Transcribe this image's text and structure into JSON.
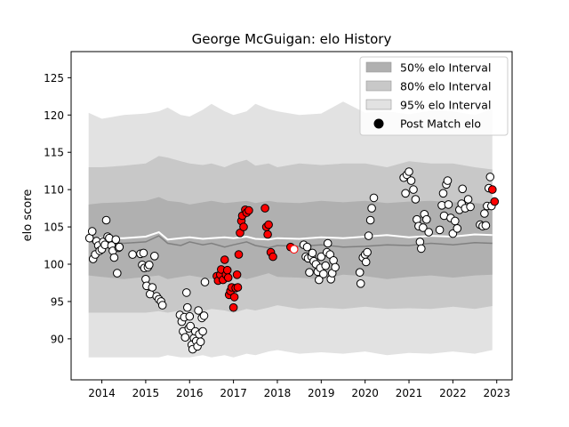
{
  "chart_data": {
    "type": "scatter",
    "title": "George McGuigan: elo History",
    "xlabel": "",
    "ylabel": "elo score",
    "xlim": [
      2013.3,
      2023.35
    ],
    "ylim": [
      84.5,
      128.5
    ],
    "x_ticks": [
      2014,
      2015,
      2016,
      2017,
      2018,
      2019,
      2020,
      2021,
      2022,
      2023
    ],
    "y_ticks": [
      90,
      95,
      100,
      105,
      110,
      115,
      120,
      125
    ],
    "grid": false,
    "legend": {
      "placement": "top-right",
      "entries": [
        {
          "label": "50% elo Interval",
          "color": "#b0b0b0"
        },
        {
          "label": "80% elo Interval",
          "color": "#c8c8c8"
        },
        {
          "label": "95% elo Interval",
          "color": "#e2e2e2"
        },
        {
          "label": "Post Match elo",
          "color": "#000000"
        }
      ]
    },
    "colors": {
      "band_50": "#b0b0b0",
      "band_80": "#c8c8c8",
      "band_95": "#e2e2e2",
      "mean_line": "#ffffff",
      "median_line": "#808080",
      "point_fill": "#ffffff",
      "point_edge": "#000000",
      "point_fill_red": "#ff0000",
      "point_edge_red": "#ff0000"
    },
    "bands": {
      "x": [
        2013.7,
        2014.0,
        2014.5,
        2015.0,
        2015.3,
        2015.5,
        2015.8,
        2016.0,
        2016.3,
        2016.5,
        2016.8,
        2017.0,
        2017.3,
        2017.5,
        2017.8,
        2018.0,
        2018.5,
        2019.0,
        2019.5,
        2020.0,
        2020.5,
        2021.0,
        2021.5,
        2022.0,
        2022.5,
        2022.9
      ],
      "band_95": {
        "lower": [
          87.5,
          87.5,
          87.5,
          87.5,
          87.5,
          87.8,
          87.5,
          87.5,
          87.8,
          87.5,
          87.8,
          87.5,
          88.0,
          87.8,
          88.3,
          88.5,
          88.0,
          88.2,
          88.0,
          88.3,
          87.8,
          88.1,
          88.0,
          88.3,
          88.0,
          88.5
        ],
        "upper": [
          120.3,
          119.5,
          120.0,
          120.2,
          120.5,
          121.0,
          120.0,
          119.8,
          120.7,
          121.5,
          120.5,
          120.0,
          120.5,
          121.5,
          120.8,
          120.5,
          120.0,
          120.2,
          121.8,
          120.3,
          120.5,
          120.1,
          120.6,
          120.5,
          120.0,
          120.8
        ]
      },
      "band_80": {
        "lower": [
          93.5,
          93.5,
          93.5,
          93.5,
          93.7,
          93.5,
          93.8,
          93.5,
          93.7,
          94.0,
          93.8,
          93.5,
          94.0,
          93.8,
          94.2,
          94.5,
          94.0,
          94.2,
          94.0,
          94.3,
          94.0,
          94.1,
          94.0,
          94.3,
          94.0,
          94.4
        ],
        "upper": [
          113.0,
          113.0,
          113.2,
          113.5,
          114.5,
          114.3,
          113.8,
          113.5,
          113.3,
          113.5,
          113.0,
          113.5,
          114.0,
          113.2,
          113.5,
          113.0,
          113.5,
          113.3,
          113.5,
          113.5,
          113.0,
          113.8,
          113.5,
          113.5,
          113.0,
          112.7
        ]
      },
      "band_50": {
        "lower": [
          98.5,
          98.3,
          98.0,
          98.3,
          98.5,
          98.0,
          98.3,
          98.5,
          98.2,
          98.0,
          98.3,
          98.5,
          98.0,
          98.3,
          98.8,
          98.3,
          98.2,
          98.0,
          98.6,
          98.4,
          98.0,
          98.3,
          98.5,
          98.2,
          98.5,
          98.6
        ],
        "upper": [
          108.0,
          108.2,
          108.3,
          108.5,
          109.0,
          108.5,
          108.3,
          108.0,
          108.3,
          108.5,
          108.2,
          108.3,
          108.5,
          108.2,
          108.5,
          108.3,
          108.2,
          108.5,
          108.3,
          108.5,
          108.2,
          108.4,
          108.5,
          108.3,
          108.2,
          108.0
        ]
      },
      "mean": [
        103.5,
        103.5,
        103.5,
        103.7,
        104.3,
        103.3,
        103.5,
        103.6,
        103.4,
        103.5,
        103.6,
        103.5,
        103.7,
        103.4,
        103.3,
        103.5,
        103.4,
        103.6,
        103.5,
        103.7,
        103.9,
        103.6,
        103.8,
        103.7,
        104.0,
        103.9
      ],
      "median": [
        103.0,
        103.0,
        102.8,
        103.0,
        103.8,
        102.8,
        102.5,
        103.0,
        102.6,
        102.8,
        102.3,
        102.6,
        103.0,
        102.5,
        102.2,
        102.5,
        102.4,
        102.6,
        102.3,
        102.4,
        102.6,
        102.5,
        102.8,
        102.6,
        102.9,
        102.8
      ]
    },
    "points": [
      {
        "x": 2013.72,
        "y": 103.5
      },
      {
        "x": 2013.78,
        "y": 104.4
      },
      {
        "x": 2013.8,
        "y": 100.7
      },
      {
        "x": 2013.85,
        "y": 101.3
      },
      {
        "x": 2013.88,
        "y": 103.1
      },
      {
        "x": 2013.92,
        "y": 102.5
      },
      {
        "x": 2013.95,
        "y": 101.8
      },
      {
        "x": 2014.0,
        "y": 102.0
      },
      {
        "x": 2014.03,
        "y": 103.0
      },
      {
        "x": 2014.07,
        "y": 102.6
      },
      {
        "x": 2014.1,
        "y": 105.9
      },
      {
        "x": 2014.13,
        "y": 103.7
      },
      {
        "x": 2014.17,
        "y": 103.5
      },
      {
        "x": 2014.22,
        "y": 102.5
      },
      {
        "x": 2014.25,
        "y": 101.8
      },
      {
        "x": 2014.28,
        "y": 100.9
      },
      {
        "x": 2014.32,
        "y": 103.3
      },
      {
        "x": 2014.35,
        "y": 98.8
      },
      {
        "x": 2014.38,
        "y": 102.2
      },
      {
        "x": 2014.4,
        "y": 102.3
      },
      {
        "x": 2014.7,
        "y": 101.3
      },
      {
        "x": 2014.88,
        "y": 101.4
      },
      {
        "x": 2014.92,
        "y": 99.9
      },
      {
        "x": 2014.95,
        "y": 101.5
      },
      {
        "x": 2014.97,
        "y": 99.5
      },
      {
        "x": 2015.0,
        "y": 98.0
      },
      {
        "x": 2015.02,
        "y": 97.1
      },
      {
        "x": 2015.05,
        "y": 99.6
      },
      {
        "x": 2015.08,
        "y": 99.9
      },
      {
        "x": 2015.1,
        "y": 96.0
      },
      {
        "x": 2015.15,
        "y": 96.9
      },
      {
        "x": 2015.2,
        "y": 101.1
      },
      {
        "x": 2015.25,
        "y": 95.7
      },
      {
        "x": 2015.3,
        "y": 95.3
      },
      {
        "x": 2015.35,
        "y": 95.0
      },
      {
        "x": 2015.38,
        "y": 94.5
      },
      {
        "x": 2015.78,
        "y": 93.2
      },
      {
        "x": 2015.82,
        "y": 92.3
      },
      {
        "x": 2015.85,
        "y": 91.0
      },
      {
        "x": 2015.88,
        "y": 92.9
      },
      {
        "x": 2015.9,
        "y": 90.2
      },
      {
        "x": 2015.93,
        "y": 96.2
      },
      {
        "x": 2015.95,
        "y": 94.2
      },
      {
        "x": 2015.98,
        "y": 91.4
      },
      {
        "x": 2016.0,
        "y": 93.0
      },
      {
        "x": 2016.02,
        "y": 91.7
      },
      {
        "x": 2016.05,
        "y": 89.2
      },
      {
        "x": 2016.07,
        "y": 88.6
      },
      {
        "x": 2016.1,
        "y": 90.1
      },
      {
        "x": 2016.13,
        "y": 91.0
      },
      {
        "x": 2016.15,
        "y": 89.7
      },
      {
        "x": 2016.18,
        "y": 89.0
      },
      {
        "x": 2016.2,
        "y": 93.8
      },
      {
        "x": 2016.22,
        "y": 90.6
      },
      {
        "x": 2016.25,
        "y": 89.6
      },
      {
        "x": 2016.28,
        "y": 92.8
      },
      {
        "x": 2016.3,
        "y": 91.0
      },
      {
        "x": 2016.33,
        "y": 93.1
      },
      {
        "x": 2016.35,
        "y": 97.6
      },
      {
        "x": 2016.62,
        "y": 98.4,
        "red": true
      },
      {
        "x": 2016.65,
        "y": 97.8,
        "red": true
      },
      {
        "x": 2016.7,
        "y": 98.6,
        "red": true
      },
      {
        "x": 2016.72,
        "y": 99.3,
        "red": true
      },
      {
        "x": 2016.76,
        "y": 97.9,
        "red": true
      },
      {
        "x": 2016.8,
        "y": 100.6,
        "red": true
      },
      {
        "x": 2016.83,
        "y": 98.6,
        "red": true
      },
      {
        "x": 2016.86,
        "y": 99.2,
        "red": true
      },
      {
        "x": 2016.88,
        "y": 98.2,
        "red": true
      },
      {
        "x": 2016.9,
        "y": 95.9,
        "red": true
      },
      {
        "x": 2016.93,
        "y": 96.4,
        "red": true
      },
      {
        "x": 2016.96,
        "y": 96.9,
        "red": true
      },
      {
        "x": 2017.0,
        "y": 94.2,
        "red": true
      },
      {
        "x": 2017.02,
        "y": 95.6,
        "red": true
      },
      {
        "x": 2017.05,
        "y": 96.8,
        "red": true
      },
      {
        "x": 2017.08,
        "y": 98.6,
        "red": true
      },
      {
        "x": 2017.1,
        "y": 96.9,
        "red": true
      },
      {
        "x": 2017.12,
        "y": 101.3,
        "red": true
      },
      {
        "x": 2017.15,
        "y": 104.2,
        "red": true
      },
      {
        "x": 2017.18,
        "y": 105.8,
        "red": true
      },
      {
        "x": 2017.2,
        "y": 106.5,
        "red": true
      },
      {
        "x": 2017.23,
        "y": 105.0,
        "red": true
      },
      {
        "x": 2017.27,
        "y": 107.3,
        "red": true
      },
      {
        "x": 2017.3,
        "y": 106.9,
        "red": true
      },
      {
        "x": 2017.35,
        "y": 107.2,
        "red": true
      },
      {
        "x": 2017.72,
        "y": 107.5,
        "red": true
      },
      {
        "x": 2017.75,
        "y": 105.0,
        "red": true
      },
      {
        "x": 2017.78,
        "y": 104.0,
        "red": true
      },
      {
        "x": 2017.8,
        "y": 105.3,
        "red": true
      },
      {
        "x": 2017.85,
        "y": 101.6,
        "red": true
      },
      {
        "x": 2017.9,
        "y": 101.0,
        "red": true
      },
      {
        "x": 2018.3,
        "y": 102.3,
        "red": true
      },
      {
        "x": 2018.38,
        "y": 102.0,
        "hollow_red": true
      },
      {
        "x": 2018.6,
        "y": 102.6
      },
      {
        "x": 2018.65,
        "y": 101.0
      },
      {
        "x": 2018.68,
        "y": 102.3
      },
      {
        "x": 2018.7,
        "y": 100.8
      },
      {
        "x": 2018.73,
        "y": 98.9
      },
      {
        "x": 2018.78,
        "y": 101.0
      },
      {
        "x": 2018.8,
        "y": 101.5
      },
      {
        "x": 2018.83,
        "y": 100.4
      },
      {
        "x": 2018.88,
        "y": 100.0
      },
      {
        "x": 2018.92,
        "y": 99.0
      },
      {
        "x": 2018.95,
        "y": 97.9
      },
      {
        "x": 2018.98,
        "y": 99.5
      },
      {
        "x": 2019.0,
        "y": 101.0
      },
      {
        "x": 2019.05,
        "y": 98.7
      },
      {
        "x": 2019.1,
        "y": 99.8
      },
      {
        "x": 2019.13,
        "y": 101.6
      },
      {
        "x": 2019.15,
        "y": 102.8
      },
      {
        "x": 2019.2,
        "y": 101.3
      },
      {
        "x": 2019.22,
        "y": 98.0
      },
      {
        "x": 2019.25,
        "y": 98.8
      },
      {
        "x": 2019.28,
        "y": 100.5
      },
      {
        "x": 2019.32,
        "y": 99.6
      },
      {
        "x": 2019.88,
        "y": 98.9
      },
      {
        "x": 2019.9,
        "y": 97.4
      },
      {
        "x": 2019.95,
        "y": 100.9
      },
      {
        "x": 2020.0,
        "y": 101.3
      },
      {
        "x": 2020.02,
        "y": 100.3
      },
      {
        "x": 2020.05,
        "y": 101.6
      },
      {
        "x": 2020.08,
        "y": 103.8
      },
      {
        "x": 2020.12,
        "y": 105.9
      },
      {
        "x": 2020.15,
        "y": 107.5
      },
      {
        "x": 2020.2,
        "y": 108.9
      },
      {
        "x": 2020.88,
        "y": 111.6
      },
      {
        "x": 2020.92,
        "y": 109.5
      },
      {
        "x": 2020.95,
        "y": 112.0
      },
      {
        "x": 2021.0,
        "y": 112.4
      },
      {
        "x": 2021.05,
        "y": 111.2
      },
      {
        "x": 2021.1,
        "y": 110.0
      },
      {
        "x": 2021.15,
        "y": 108.7
      },
      {
        "x": 2021.18,
        "y": 106.0
      },
      {
        "x": 2021.22,
        "y": 105.1
      },
      {
        "x": 2021.25,
        "y": 103.0
      },
      {
        "x": 2021.28,
        "y": 102.1
      },
      {
        "x": 2021.32,
        "y": 104.9
      },
      {
        "x": 2021.35,
        "y": 106.7
      },
      {
        "x": 2021.4,
        "y": 106.0
      },
      {
        "x": 2021.45,
        "y": 104.3
      },
      {
        "x": 2021.7,
        "y": 104.6
      },
      {
        "x": 2021.75,
        "y": 107.9
      },
      {
        "x": 2021.78,
        "y": 109.5
      },
      {
        "x": 2021.8,
        "y": 106.5
      },
      {
        "x": 2021.85,
        "y": 110.7
      },
      {
        "x": 2021.88,
        "y": 111.2
      },
      {
        "x": 2021.9,
        "y": 108.0
      },
      {
        "x": 2021.95,
        "y": 106.2
      },
      {
        "x": 2022.0,
        "y": 104.1
      },
      {
        "x": 2022.05,
        "y": 105.8
      },
      {
        "x": 2022.1,
        "y": 104.8
      },
      {
        "x": 2022.15,
        "y": 107.3
      },
      {
        "x": 2022.2,
        "y": 108.1
      },
      {
        "x": 2022.22,
        "y": 110.1
      },
      {
        "x": 2022.28,
        "y": 107.5
      },
      {
        "x": 2022.35,
        "y": 108.7
      },
      {
        "x": 2022.4,
        "y": 107.7
      },
      {
        "x": 2022.62,
        "y": 105.3
      },
      {
        "x": 2022.68,
        "y": 105.1
      },
      {
        "x": 2022.72,
        "y": 106.8
      },
      {
        "x": 2022.75,
        "y": 105.2
      },
      {
        "x": 2022.78,
        "y": 107.8
      },
      {
        "x": 2022.82,
        "y": 110.2
      },
      {
        "x": 2022.85,
        "y": 111.7
      },
      {
        "x": 2022.88,
        "y": 107.8
      },
      {
        "x": 2022.9,
        "y": 110.0,
        "red": true
      },
      {
        "x": 2022.95,
        "y": 108.4,
        "red": true
      }
    ]
  }
}
